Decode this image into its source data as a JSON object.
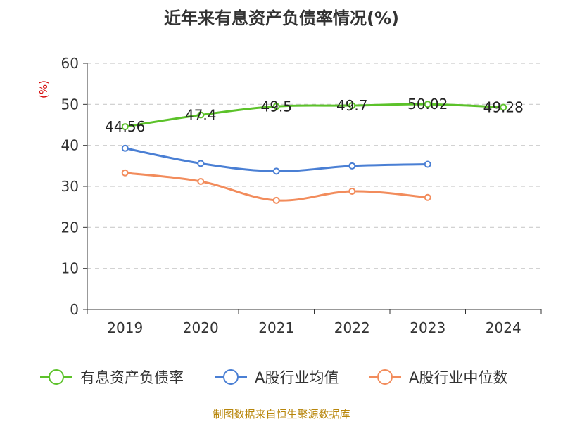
{
  "title": "近年来有息资产负债率情况(%)",
  "source": "制图数据来自恒生聚源数据库",
  "chart_data": {
    "type": "line",
    "title": "近年来有息资产负债率情况(%)",
    "ylabel": "(%)",
    "xlabel": "",
    "ylim": [
      0,
      60
    ],
    "yticks": [
      0,
      10,
      20,
      30,
      40,
      50,
      60
    ],
    "categories": [
      "2019",
      "2020",
      "2021",
      "2022",
      "2023",
      "2024"
    ],
    "grid": "horizontal-dashed",
    "legend_position": "bottom",
    "series": [
      {
        "name": "有息资产负债率",
        "color": "#5cc22a",
        "values": [
          44.56,
          47.4,
          49.5,
          49.7,
          50.02,
          49.28
        ],
        "labels": [
          "44.56",
          "47.4",
          "49.5",
          "49.7",
          "50.02",
          "49.28"
        ]
      },
      {
        "name": "A股行业均值",
        "color": "#4a7fd4",
        "values": [
          39.3,
          35.6,
          33.7,
          35.0,
          35.4,
          null
        ]
      },
      {
        "name": "A股行业中位数",
        "color": "#f28c5c",
        "values": [
          33.3,
          31.2,
          26.6,
          28.8,
          27.3,
          null
        ]
      }
    ]
  }
}
